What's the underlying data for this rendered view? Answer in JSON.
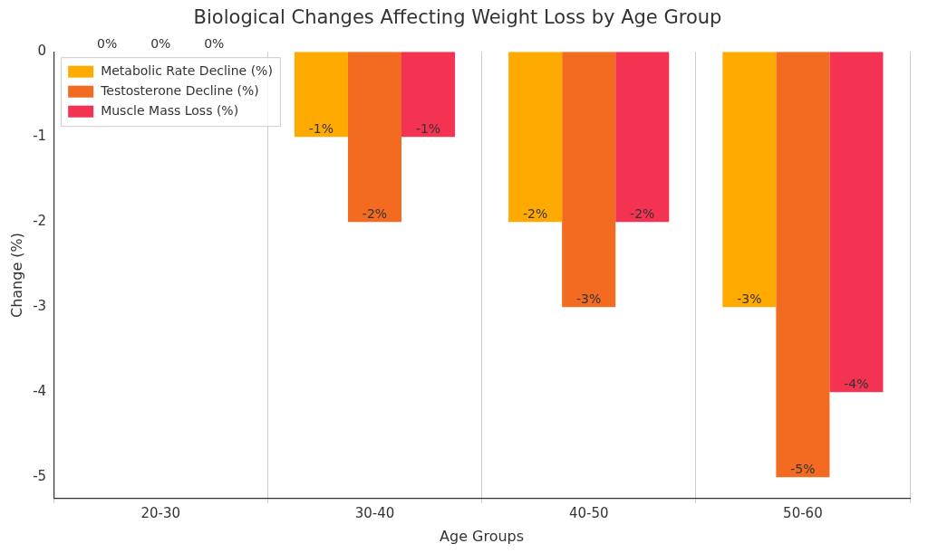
{
  "chart_data": {
    "type": "bar",
    "title": "Biological Changes Affecting Weight Loss by Age Group",
    "x_label": "Age Groups",
    "y_label": "Change (%)",
    "categories": [
      "20-30",
      "30-40",
      "40-50",
      "50-60"
    ],
    "series": [
      {
        "name": "Metabolic Rate Decline (%)",
        "color": "#ffaa00",
        "values": [
          0,
          -1,
          -2,
          -3
        ],
        "value_labels": [
          "0%",
          "-1%",
          "-2%",
          "-3%"
        ]
      },
      {
        "name": "Testosterone Decline (%)",
        "color": "#f26b21",
        "values": [
          0,
          -2,
          -3,
          -5
        ],
        "value_labels": [
          "0%",
          "-2%",
          "-3%",
          "-5%"
        ]
      },
      {
        "name": "Muscle Mass Loss (%)",
        "color": "#f43353",
        "values": [
          0,
          -1,
          -2,
          -4
        ],
        "value_labels": [
          "0%",
          "-1%",
          "-2%",
          "-4%"
        ]
      }
    ],
    "ylim": [
      -5.25,
      0
    ],
    "yticks": [
      -5,
      -4,
      -3,
      -2,
      -1,
      0
    ],
    "grid": "x",
    "legend": "upper left",
    "data_labels": true
  }
}
